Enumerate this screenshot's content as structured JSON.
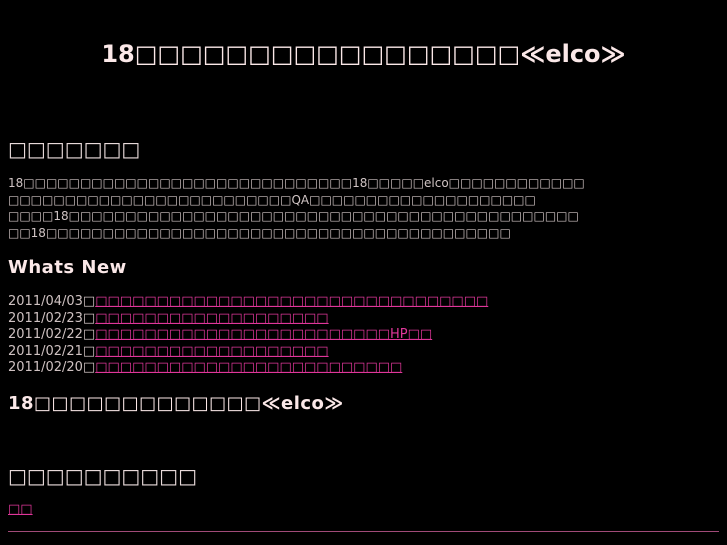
{
  "header": {
    "title": "18□□□□□□□□□□□□□□□□□≪elco≫"
  },
  "intro": {
    "heading": "□□□□□□□",
    "lines": [
      "18□□□□□□□□□□□□□□□□□□□□□□□□□□□□□18□□□□□elco□□□□□□□□□□□□",
      "□□□□□□□□□□□□□□□□□□□□□□□□□QA□□□□□□□□□□□□□□□□□□□□",
      "□□□□18□□□□□□□□□□□□□□□□□□□□□□□□□□□□□□□□□□□□□□□□□□□□□",
      "□□18□□□□□□□□□□□□□□□□□□□□□□□□□□□□□□□□□□□□□□□□□"
    ]
  },
  "whats_new": {
    "heading": "Whats New",
    "items": [
      {
        "date": "2011/04/03□",
        "link": "□□□□□□□□□□□□□□□□□□□□□□□□□□□□□□□□"
      },
      {
        "date": "2011/02/23□",
        "link": "□□□□□□□□□□□□□□□□□□□"
      },
      {
        "date": "2011/02/22□",
        "link": "□□□□□□□□□□□□□□□□□□□□□□□□HP□□"
      },
      {
        "date": "2011/02/21□",
        "link": "□□□□□□□□□□□□□□□□□□□"
      },
      {
        "date": "2011/02/20□",
        "link": "□□□□□□□□□□□□□□□□□□□□□□□□□"
      }
    ]
  },
  "site_name": "18□□□□□□□□□□□□□≪elco≫",
  "section3": {
    "heading": "□□□□□□□□□□",
    "link": "□□"
  },
  "colors": {
    "background": "#000000",
    "link": "#e0379a",
    "rule": "#a04a78"
  }
}
